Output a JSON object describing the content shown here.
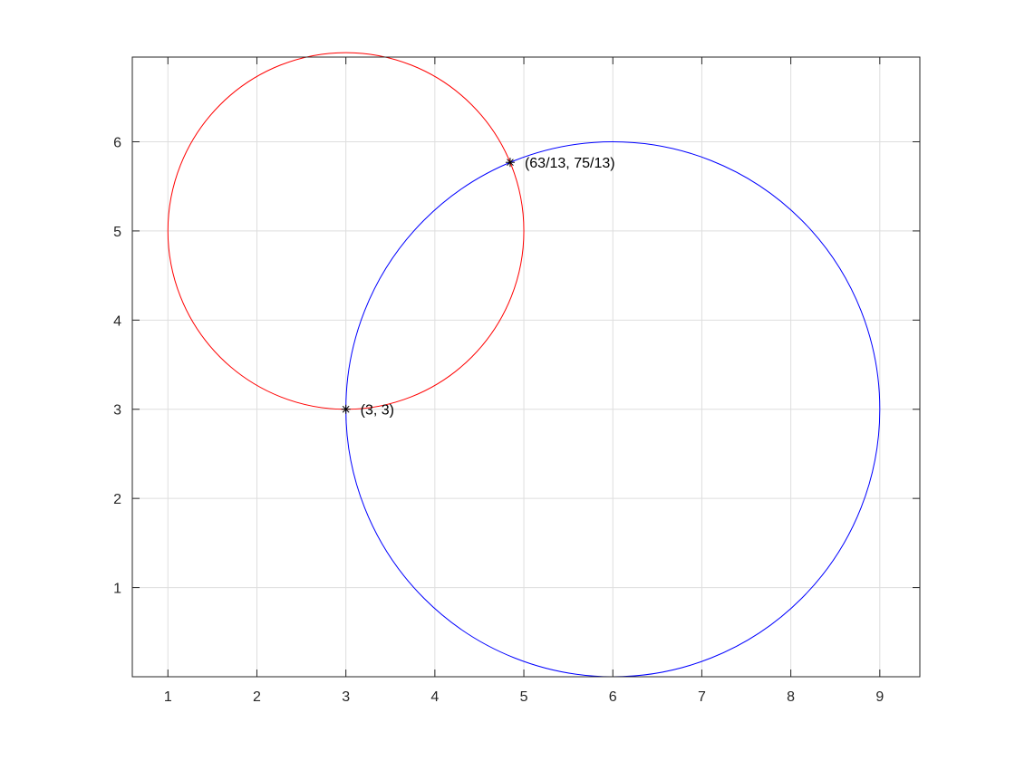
{
  "chart_data": {
    "type": "line",
    "title": "",
    "xlabel": "",
    "ylabel": "",
    "xlim": [
      0.6,
      9.45
    ],
    "ylim": [
      0,
      6.95
    ],
    "xticks": [
      1,
      2,
      3,
      4,
      5,
      6,
      7,
      8,
      9
    ],
    "yticks": [
      1,
      2,
      3,
      4,
      5,
      6
    ],
    "grid": true,
    "series": [
      {
        "shape": "circle",
        "center": [
          3,
          5
        ],
        "radius": 2,
        "color": "#ff0000"
      },
      {
        "shape": "circle",
        "center": [
          6,
          3
        ],
        "radius": 3,
        "color": "#0000ff"
      }
    ],
    "points": [
      {
        "x": 3,
        "y": 3,
        "marker": "asterisk",
        "color": "#000000",
        "label": "(3, 3)"
      },
      {
        "x": 4.846153846,
        "y": 5.769230769,
        "marker": "asterisk",
        "color": "#000000",
        "label": "(63/13, 75/13)"
      }
    ]
  }
}
